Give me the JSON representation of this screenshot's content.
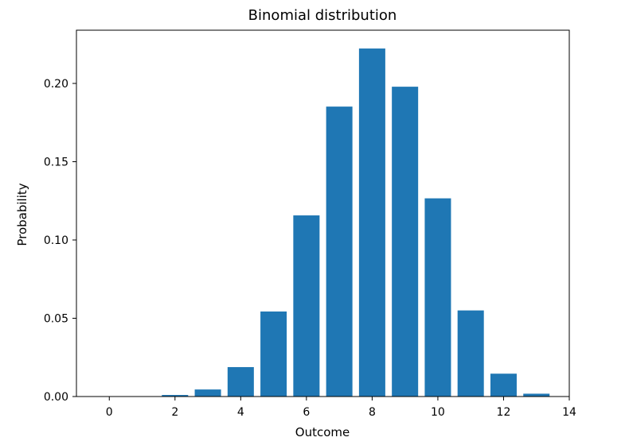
{
  "chart_data": {
    "type": "bar",
    "title": "Binomial distribution",
    "xlabel": "Outcome",
    "ylabel": "Probability",
    "x": [
      0,
      1,
      2,
      3,
      4,
      5,
      6,
      7,
      8,
      9,
      10,
      11,
      12,
      13
    ],
    "values": [
      0.0,
      0.0,
      0.001,
      0.0045,
      0.0188,
      0.0543,
      0.1157,
      0.1852,
      0.2223,
      0.1979,
      0.1266,
      0.055,
      0.0146,
      0.0018
    ],
    "xlim": [
      -1,
      14
    ],
    "ylim": [
      0,
      0.234
    ],
    "xticks": [
      0,
      2,
      4,
      6,
      8,
      10,
      12,
      14
    ],
    "xtick_labels": [
      "0",
      "2",
      "4",
      "6",
      "8",
      "10",
      "12",
      "14"
    ],
    "yticks": [
      0.0,
      0.05,
      0.1,
      0.15,
      0.2
    ],
    "ytick_labels": [
      "0.00",
      "0.05",
      "0.10",
      "0.15",
      "0.20"
    ],
    "bar_color": "#1f77b4",
    "grid": false,
    "legend": "none"
  }
}
